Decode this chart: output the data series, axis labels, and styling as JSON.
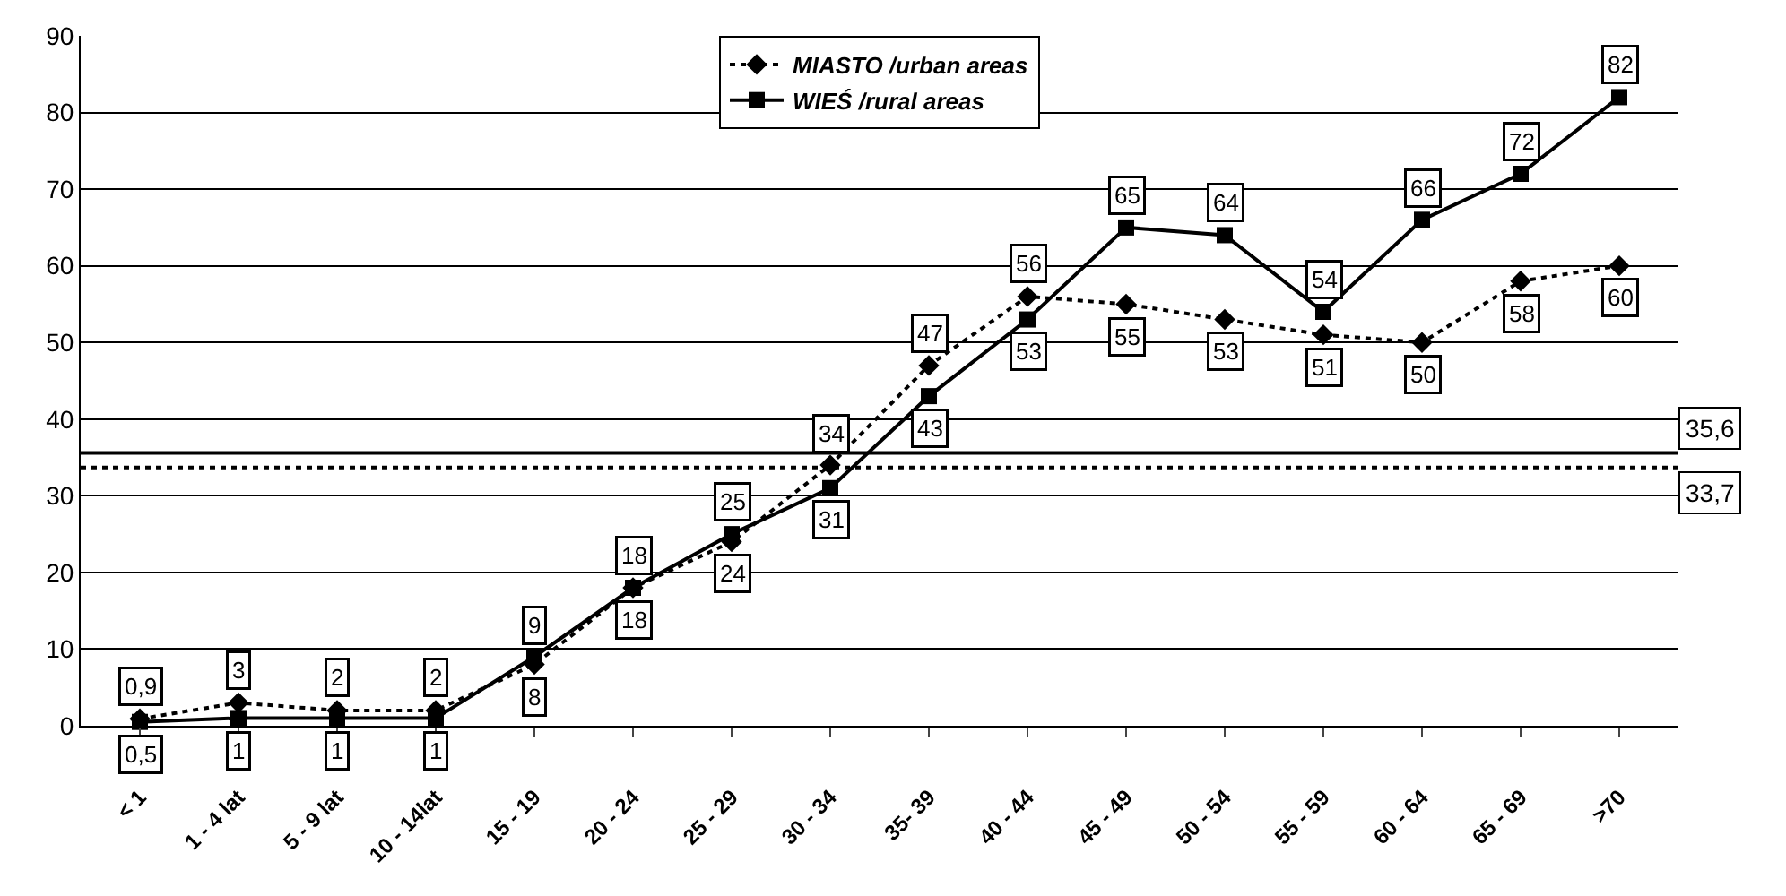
{
  "chart_data": {
    "type": "line",
    "categories": [
      "< 1",
      "1 - 4 lat",
      "5 - 9 lat",
      "10 - 14lat",
      "15 - 19",
      "20 - 24",
      "25 - 29",
      "30 - 34",
      "35- 39",
      "40 - 44",
      "45 - 49",
      "50 - 54",
      "55 - 59",
      "60 - 64",
      "65 - 69",
      ">70"
    ],
    "series": [
      {
        "name": "MIASTO /urban areas",
        "color": "#000000",
        "marker": "diamond",
        "line_style": "dotted",
        "values": [
          0.9,
          3,
          2,
          2,
          8,
          18,
          24,
          34,
          47,
          56,
          55,
          53,
          51,
          50,
          58,
          60
        ],
        "value_labels": [
          "0,9",
          "3",
          "2",
          "2",
          "8",
          "18",
          "24",
          "34",
          "47",
          "56",
          "55",
          "53",
          "51",
          "50",
          "58",
          "60"
        ]
      },
      {
        "name": "WIEŚ /rural areas",
        "color": "#000000",
        "marker": "square",
        "line_style": "solid",
        "values": [
          0.5,
          1,
          1,
          1,
          9,
          18,
          25,
          31,
          43,
          53,
          65,
          64,
          54,
          66,
          72,
          82
        ],
        "value_labels": [
          "0,5",
          "1",
          "1",
          "1",
          "9",
          "18",
          "25",
          "31",
          "43",
          "53",
          "65",
          "64",
          "54",
          "66",
          "72",
          "82"
        ]
      }
    ],
    "ylim": [
      0,
      90
    ],
    "yticks": [
      0,
      10,
      20,
      30,
      40,
      50,
      60,
      70,
      80,
      90
    ],
    "grid": "y",
    "legend": "top",
    "ref_lines": [
      {
        "axis": "y",
        "value": 35.6,
        "label": "35,6",
        "color": "#000000",
        "line_style": "solid"
      },
      {
        "axis": "y",
        "value": 33.7,
        "label": "33,7",
        "color": "#000000",
        "line_style": "dotted"
      }
    ]
  }
}
